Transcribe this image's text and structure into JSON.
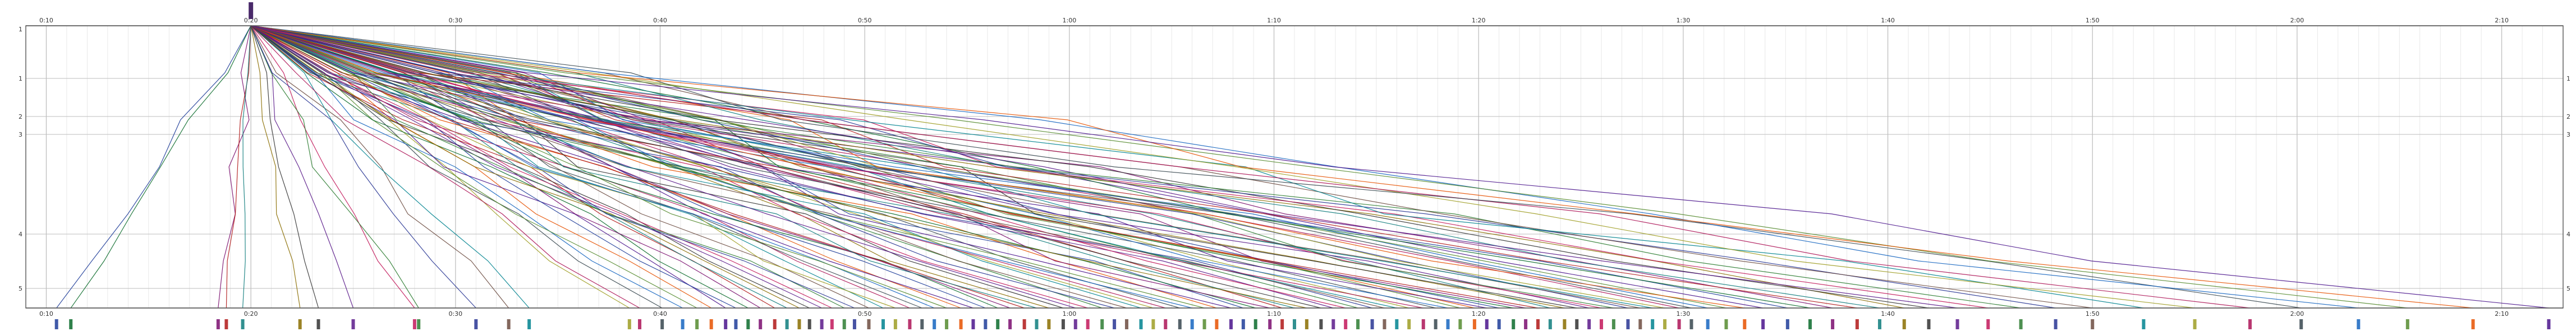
{
  "chart_data": {
    "type": "line",
    "title": "",
    "xlabel": "",
    "ylabel": "",
    "x_ticks": [
      "0:10",
      "0:20",
      "0:30",
      "0:40",
      "0:50",
      "1:00",
      "1:10",
      "1:20",
      "1:30",
      "1:40",
      "1:50",
      "2:00",
      "2:10"
    ],
    "x_tick_minutes": [
      10,
      20,
      30,
      40,
      50,
      60,
      70,
      80,
      90,
      100,
      110,
      120,
      130
    ],
    "xlim_minutes": [
      9,
      133
    ],
    "grid": true,
    "left_axis_labels": [
      "1",
      "1",
      "2",
      "3",
      "4",
      "5"
    ],
    "right_axis_labels": [
      "1",
      "2",
      "3",
      "4",
      "5"
    ],
    "start_minute": 20,
    "series_count": 120,
    "colors": [
      "#1f3d99",
      "#0b6b2b",
      "#7a0d6e",
      "#b01818",
      "#0e7c7c",
      "#8a6d00",
      "#333333",
      "#5a1a8a",
      "#c2185b",
      "#2e7d32",
      "#283593",
      "#6d4c41",
      "#00838f",
      "#9e9d24",
      "#ad1457",
      "#37474f",
      "#1565c0",
      "#558b2f",
      "#e65100",
      "#4a148c"
    ],
    "end_minutes": [
      10.5,
      11.2,
      18.4,
      18.8,
      19.6,
      22.4,
      23.3,
      25.0,
      28.0,
      28.2,
      31.0,
      32.6,
      33.6,
      38.5,
      39.0,
      40.1,
      41.1,
      41.8,
      42.5,
      43.2,
      43.7,
      44.3,
      44.9,
      45.6,
      46.2,
      46.8,
      47.3,
      47.9,
      48.4,
      49.0,
      49.5,
      50.2,
      50.9,
      51.5,
      52.2,
      52.8,
      53.4,
      54.0,
      54.7,
      55.3,
      55.9,
      56.5,
      57.1,
      57.8,
      58.4,
      59.0,
      59.7,
      60.3,
      60.9,
      61.6,
      62.2,
      62.8,
      63.5,
      64.1,
      64.7,
      65.4,
      66.0,
      66.6,
      67.2,
      67.9,
      68.5,
      69.1,
      69.8,
      70.4,
      71.0,
      71.6,
      72.3,
      72.9,
      73.5,
      74.1,
      74.8,
      75.4,
      76.0,
      76.6,
      77.3,
      77.9,
      78.5,
      79.1,
      79.8,
      80.4,
      81.0,
      81.7,
      82.3,
      82.9,
      83.5,
      84.2,
      84.8,
      85.4,
      86.0,
      86.6,
      87.3,
      87.9,
      88.5,
      89.1,
      89.8,
      90.4,
      91.2,
      92.1,
      93.0,
      93.9,
      95.1,
      96.2,
      97.3,
      98.5,
      99.6,
      100.8,
      102.0,
      103.4,
      104.9,
      106.5,
      108.2,
      110.0,
      112.5,
      115.0,
      117.7,
      120.2,
      123.0,
      125.4,
      128.6,
      132.3
    ]
  }
}
